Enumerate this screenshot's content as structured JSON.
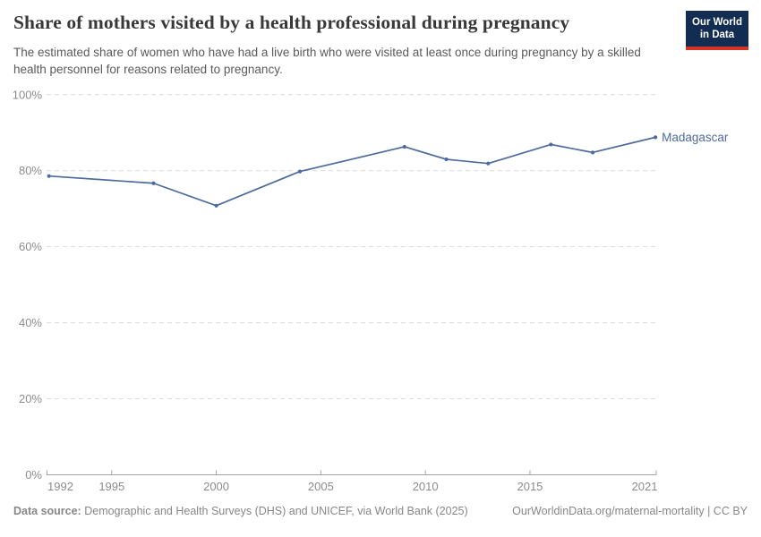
{
  "page": {
    "background": "#ffffff"
  },
  "header": {
    "title": "Share of mothers visited by a health professional during pregnancy",
    "subtitle": "The estimated share of women who have had a live birth who were visited at least once during pregnancy by a skilled health personnel for reasons related to pregnancy.",
    "logo": {
      "line1": "Our World",
      "line2": "in Data",
      "bg_color": "#132d52",
      "accent_color": "#d43425"
    }
  },
  "chart_data": {
    "type": "line",
    "title": "Share of mothers visited by a health professional during pregnancy",
    "x": [
      1992,
      1997,
      2000,
      2004,
      2009,
      2011,
      2013,
      2016,
      2018,
      2021
    ],
    "series": [
      {
        "name": "Madagascar",
        "color": "#4c6b9e",
        "values": [
          78.6,
          76.7,
          70.8,
          79.8,
          86.3,
          83.0,
          81.9,
          86.9,
          84.8,
          88.8
        ]
      }
    ],
    "xticks": [
      1992,
      1995,
      2000,
      2005,
      2010,
      2015,
      2021
    ],
    "yticks": [
      0,
      20,
      40,
      60,
      80,
      100
    ],
    "ytick_suffix": "%",
    "xlim": [
      1992,
      2021
    ],
    "ylim": [
      0,
      100
    ],
    "grid": "horizontal-dashed",
    "grid_color": "#dcdcdc",
    "axis_color": "#a3a3a3",
    "tick_label_color": "#8c8c8c",
    "legend_position": "end-of-line-label"
  },
  "footer": {
    "datasource_label": "Data source:",
    "datasource_text": "Demographic and Health Surveys (DHS) and UNICEF, via World Bank (2025)",
    "link_text": "OurWorldinData.org/maternal-mortality | CC BY"
  }
}
